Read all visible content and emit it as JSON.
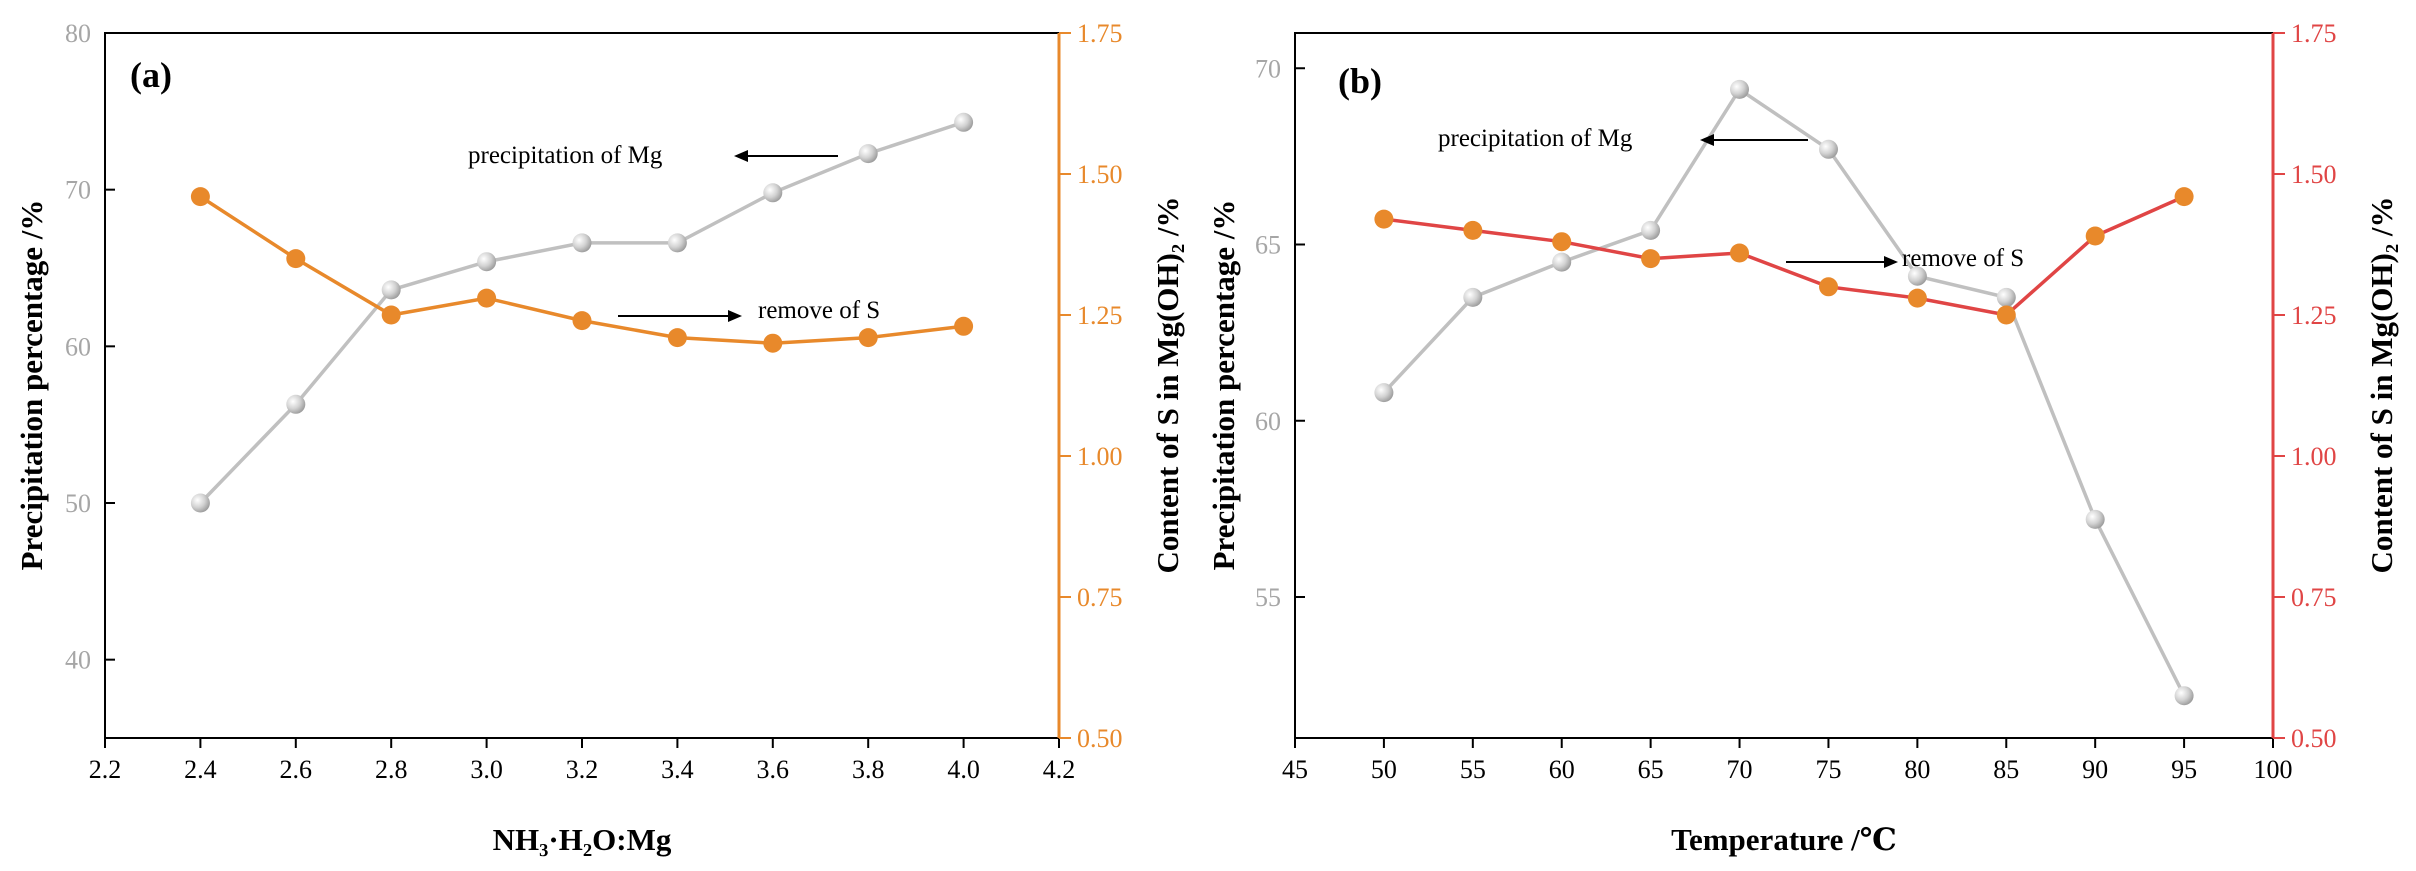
{
  "chart_data": [
    {
      "type": "line",
      "panel_label": "(a)",
      "xlabel": "NH₃·H₂O:Mg",
      "x_ticks": [
        "2.2",
        "2.4",
        "2.6",
        "2.8",
        "3.0",
        "3.2",
        "3.4",
        "3.6",
        "3.8",
        "4.0",
        "4.2"
      ],
      "xlim": [
        2.2,
        4.2
      ],
      "ylabel_left": "Precipitation percentage /%",
      "ylim_left": [
        35,
        80
      ],
      "yticks_left": [
        "40",
        "50",
        "60",
        "70",
        "80"
      ],
      "ylabel_right": "Content of S in Mg(OH)₂ /%",
      "ylim_right": [
        0.5,
        1.75
      ],
      "yticks_right": [
        "0.50",
        "0.75",
        "1.00",
        "1.25",
        "1.50",
        "1.75"
      ],
      "right_axis_color": "#e8892b",
      "series": [
        {
          "name": "precipitation of Mg",
          "axis": "left",
          "color": "#c0c0c0",
          "x": [
            2.4,
            2.6,
            2.8,
            3.0,
            3.2,
            3.4,
            3.6,
            3.8,
            4.0
          ],
          "values": [
            50.0,
            56.3,
            63.6,
            65.4,
            66.6,
            66.6,
            69.8,
            72.3,
            74.3
          ]
        },
        {
          "name": "remove of S",
          "axis": "right",
          "color": "#e8892b",
          "x": [
            2.4,
            2.6,
            2.8,
            3.0,
            3.2,
            3.4,
            3.6,
            3.8,
            4.0
          ],
          "values": [
            1.46,
            1.35,
            1.25,
            1.28,
            1.24,
            1.21,
            1.2,
            1.21,
            1.23
          ]
        }
      ],
      "annotations": [
        {
          "text": "precipitation of Mg",
          "arrow": "left"
        },
        {
          "text": "remove of S",
          "arrow": "right"
        }
      ]
    },
    {
      "type": "line",
      "panel_label": "(b)",
      "xlabel": "Temperature /℃",
      "x_ticks": [
        "45",
        "50",
        "55",
        "60",
        "65",
        "70",
        "75",
        "80",
        "85",
        "90",
        "95",
        "100"
      ],
      "xlim": [
        45,
        100
      ],
      "ylabel_left": "Precipitation percentage /%",
      "ylim_left": [
        51,
        71
      ],
      "yticks_left": [
        "55",
        "60",
        "65",
        "70"
      ],
      "ylabel_right": "Content of S in Mg(OH)₂ /%",
      "ylim_right": [
        0.5,
        1.75
      ],
      "yticks_right": [
        "0.50",
        "0.75",
        "1.00",
        "1.25",
        "1.50",
        "1.75"
      ],
      "right_axis_color": "#e04545",
      "series": [
        {
          "name": "precipitation of Mg",
          "axis": "left",
          "color": "#c0c0c0",
          "x": [
            50,
            55,
            60,
            65,
            70,
            75,
            80,
            85,
            90,
            95
          ],
          "values": [
            60.8,
            63.5,
            64.5,
            65.4,
            69.4,
            67.7,
            64.1,
            63.5,
            57.2,
            52.2
          ]
        },
        {
          "name": "remove of S",
          "axis": "right",
          "color": "#e04545",
          "marker_color": "#e8892b",
          "x": [
            50,
            55,
            60,
            65,
            70,
            75,
            80,
            85,
            90,
            95
          ],
          "values": [
            1.42,
            1.4,
            1.38,
            1.35,
            1.36,
            1.3,
            1.28,
            1.25,
            1.39,
            1.46
          ]
        }
      ],
      "annotations": [
        {
          "text": "precipitation of Mg",
          "arrow": "left"
        },
        {
          "text": "remove of S",
          "arrow": "right"
        }
      ]
    }
  ]
}
